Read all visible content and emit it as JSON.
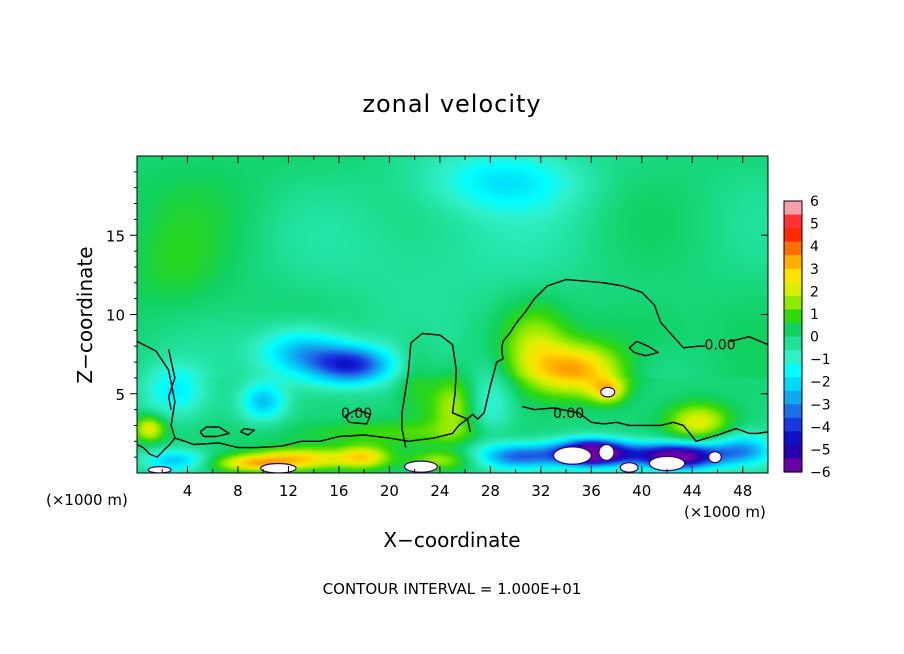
{
  "chart_data": {
    "type": "heatmap",
    "title": "zonal velocity",
    "xlabel": "X−coordinate",
    "ylabel": "Z−coordinate",
    "x_unit_left": "(×1000 m)",
    "x_unit_right": "(×1000 m)",
    "footer": "CONTOUR INTERVAL = 1.000E+01",
    "xlim": [
      0,
      50
    ],
    "ylim": [
      0,
      20
    ],
    "x_ticks": [
      "4",
      "8",
      "12",
      "16",
      "20",
      "24",
      "28",
      "32",
      "36",
      "40",
      "44",
      "48"
    ],
    "x_tick_values": [
      4,
      8,
      12,
      16,
      20,
      24,
      28,
      32,
      36,
      40,
      44,
      48
    ],
    "y_ticks": [
      "5",
      "10",
      "15"
    ],
    "y_tick_values": [
      5,
      10,
      15
    ],
    "contour_labels": [
      {
        "text": "0.00",
        "x": 17.4,
        "z": 3.8
      },
      {
        "text": "0.00",
        "x": 34.2,
        "z": 3.8
      },
      {
        "text": "0.00",
        "x": 46.2,
        "z": 8.1
      }
    ],
    "colorbar": {
      "labels": [
        "6",
        "5",
        "4",
        "3",
        "2",
        "1",
        "0",
        "−1",
        "−2",
        "−3",
        "−4",
        "−5",
        "−6"
      ],
      "colors": [
        "#f8a0a8",
        "#ff3333",
        "#ff2a00",
        "#ff7000",
        "#ffb000",
        "#ffe200",
        "#d8f000",
        "#90ea00",
        "#30d80a",
        "#10d060",
        "#20e09a",
        "#30f0c8",
        "#00ffff",
        "#00d8f8",
        "#10a8f0",
        "#1d70e8",
        "#1838e0",
        "#1010c8",
        "#2800b0",
        "#6a00a8"
      ]
    },
    "features": [
      {
        "x": 8,
        "z": 16.5,
        "v": 0.3,
        "sx": 14,
        "sz": 5
      },
      {
        "x": 29,
        "z": 18.5,
        "v": -1.8,
        "sx": 6,
        "sz": 2
      },
      {
        "x": 22,
        "z": 14.5,
        "v": -0.6,
        "sx": 12,
        "sz": 4
      },
      {
        "x": 3,
        "z": 12.5,
        "v": 0.5,
        "sx": 4,
        "sz": 3
      },
      {
        "x": 17,
        "z": 6.8,
        "v": -4.2,
        "sx": 3.2,
        "sz": 1.2
      },
      {
        "x": 13,
        "z": 7.6,
        "v": -2.8,
        "sx": 3.5,
        "sz": 1.6
      },
      {
        "x": 10,
        "z": 4.5,
        "v": -2.5,
        "sx": 1.8,
        "sz": 1.2
      },
      {
        "x": 3,
        "z": 5.2,
        "v": -1.8,
        "sx": 2.5,
        "sz": 1.6
      },
      {
        "x": 1,
        "z": 2.8,
        "v": 2.5,
        "sx": 1.2,
        "sz": 0.8
      },
      {
        "x": 25,
        "z": 4.2,
        "v": 1.8,
        "sx": 1.8,
        "sz": 2.0
      },
      {
        "x": 22,
        "z": 6.0,
        "v": 0.8,
        "sx": 1.5,
        "sz": 2.5
      },
      {
        "x": 35,
        "z": 6.5,
        "v": 3.3,
        "sx": 3.5,
        "sz": 1.6
      },
      {
        "x": 37.3,
        "z": 5.2,
        "v": 2.3,
        "sx": 1.4,
        "sz": 0.8
      },
      {
        "x": 31.5,
        "z": 8.0,
        "v": 1.6,
        "sx": 2.5,
        "sz": 2.5
      },
      {
        "x": 40,
        "z": 9.0,
        "v": 0.6,
        "sx": 4,
        "sz": 2
      },
      {
        "x": 44.5,
        "z": 3.2,
        "v": 2.4,
        "sx": 2.5,
        "sz": 1.2
      },
      {
        "x": 28,
        "z": 4.5,
        "v": -1.2,
        "sx": 1.8,
        "sz": 2.2
      },
      {
        "x": 20,
        "z": 2.5,
        "v": 1.0,
        "sx": 8,
        "sz": 0.8
      },
      {
        "x": 38,
        "z": 1.2,
        "v": -3.0,
        "sx": 8,
        "sz": 0.8
      },
      {
        "x": 13,
        "z": 0.9,
        "v": 3.0,
        "sx": 4,
        "sz": 0.7
      },
      {
        "x": 18,
        "z": 1.0,
        "v": 2.5,
        "sx": 2,
        "sz": 0.7
      },
      {
        "x": 36,
        "z": 1.3,
        "v": -5.5,
        "sx": 2.5,
        "sz": 0.8
      },
      {
        "x": 43,
        "z": 1.0,
        "v": -5.0,
        "sx": 3,
        "sz": 0.8
      },
      {
        "x": 9,
        "z": 0.6,
        "v": 2.5,
        "sx": 3.0,
        "sz": 0.5
      },
      {
        "x": 24,
        "z": 0.8,
        "v": 1.6,
        "sx": 2.5,
        "sz": 0.6
      },
      {
        "x": 30,
        "z": 1.0,
        "v": -2.5,
        "sx": 3,
        "sz": 0.8
      },
      {
        "x": 3,
        "z": 0.8,
        "v": -2.5,
        "sx": 2.5,
        "sz": 0.7
      },
      {
        "x": 48,
        "z": 1.5,
        "v": -2.5,
        "sx": 2.5,
        "sz": 1.0
      }
    ],
    "white_spots": [
      {
        "x": 11.2,
        "z": 0.3,
        "rx": 1.4,
        "rz": 0.3
      },
      {
        "x": 1.8,
        "z": 0.2,
        "rx": 0.9,
        "rz": 0.2
      },
      {
        "x": 22.5,
        "z": 0.4,
        "rx": 1.3,
        "rz": 0.35
      },
      {
        "x": 34.5,
        "z": 1.1,
        "rx": 1.5,
        "rz": 0.55
      },
      {
        "x": 37.2,
        "z": 1.3,
        "rx": 0.6,
        "rz": 0.5
      },
      {
        "x": 42.0,
        "z": 0.6,
        "rx": 1.4,
        "rz": 0.45
      },
      {
        "x": 45.8,
        "z": 1.0,
        "rx": 0.5,
        "rz": 0.35
      },
      {
        "x": 39.0,
        "z": 0.35,
        "rx": 0.7,
        "rz": 0.3
      },
      {
        "x": 37.3,
        "z": 5.1,
        "rx": 0.55,
        "rz": 0.3
      }
    ],
    "contours": [
      [
        [
          0,
          8.3
        ],
        [
          1.5,
          7.7
        ],
        [
          2.5,
          6.5
        ],
        [
          3,
          4.5
        ],
        [
          2.7,
          3.0
        ],
        [
          3.0,
          2.2
        ],
        [
          3.8,
          2.0
        ],
        [
          4.5,
          1.8
        ],
        [
          6.5,
          1.9
        ],
        [
          8,
          1.6
        ],
        [
          9.5,
          1.6
        ],
        [
          11.5,
          1.7
        ],
        [
          13,
          2.0
        ],
        [
          14.5,
          2.0
        ],
        [
          16,
          2.3
        ],
        [
          18,
          2.4
        ],
        [
          20,
          2.2
        ],
        [
          21.5,
          2.0
        ],
        [
          23.5,
          2.2
        ],
        [
          25,
          2.5
        ],
        [
          25.5,
          3.0
        ],
        [
          26,
          3.3
        ],
        [
          26.6,
          3.7
        ],
        [
          27,
          3.4
        ],
        [
          27.5,
          3.8
        ],
        [
          28,
          5.5
        ],
        [
          28.5,
          7.0
        ],
        [
          29,
          7.2
        ],
        [
          28.9,
          7.8
        ],
        [
          29,
          8.3
        ],
        [
          29.6,
          8.9
        ],
        [
          30,
          9.4
        ],
        [
          30.8,
          10.2
        ],
        [
          31.5,
          11.0
        ],
        [
          32.5,
          11.8
        ],
        [
          34,
          12.2
        ],
        [
          35.6,
          12.1
        ],
        [
          37,
          12.0
        ],
        [
          38.5,
          11.8
        ],
        [
          40,
          11.4
        ],
        [
          41,
          10.6
        ],
        [
          41.5,
          9.5
        ],
        [
          42.5,
          8.6
        ],
        [
          43.3,
          7.9
        ],
        [
          44.5,
          8.0
        ],
        [
          45,
          8.0
        ]
      ],
      [
        [
          47,
          8.3
        ],
        [
          48.5,
          8.6
        ],
        [
          50,
          8.1
        ]
      ],
      [
        [
          2.5,
          7.8
        ],
        [
          3,
          6.0
        ],
        [
          2.5,
          4.8
        ],
        [
          2.7,
          4.0
        ]
      ],
      [
        [
          3,
          2.2
        ],
        [
          2.6,
          1.8
        ],
        [
          2.2,
          1.5
        ],
        [
          1.6,
          1.0
        ],
        [
          1,
          1.2
        ],
        [
          0.5,
          1.6
        ],
        [
          0,
          1.8
        ]
      ],
      [
        [
          21.3,
          1.6
        ],
        [
          21.0,
          2.8
        ],
        [
          21.0,
          3.8
        ],
        [
          21.5,
          6.3
        ],
        [
          21.7,
          8.2
        ],
        [
          22.6,
          8.8
        ],
        [
          24,
          8.7
        ],
        [
          25,
          8.1
        ],
        [
          25.3,
          6.5
        ],
        [
          25.2,
          5.0
        ],
        [
          25.0,
          3.8
        ],
        [
          26.2,
          3.4
        ],
        [
          26.4,
          2.6
        ]
      ],
      [
        [
          30.5,
          4.2
        ],
        [
          31.5,
          4.0
        ],
        [
          33,
          4.1
        ],
        [
          35,
          3.8
        ],
        [
          36,
          3.2
        ],
        [
          37,
          3.1
        ],
        [
          38,
          3.2
        ],
        [
          39,
          3.0
        ],
        [
          40.5,
          3.0
        ],
        [
          41.5,
          3.0
        ],
        [
          42.5,
          3.2
        ],
        [
          43.3,
          3.0
        ],
        [
          44.3,
          2.0
        ],
        [
          46,
          2.4
        ],
        [
          47.5,
          2.8
        ],
        [
          48.5,
          2.5
        ],
        [
          49.2,
          2.5
        ],
        [
          50,
          2.6
        ]
      ],
      [
        [
          39,
          7.9
        ],
        [
          39.6,
          8.3
        ],
        [
          40.5,
          8.0
        ],
        [
          41.3,
          7.6
        ],
        [
          40.3,
          7.4
        ],
        [
          39.4,
          7.6
        ],
        [
          39,
          7.9
        ]
      ],
      [
        [
          5,
          2.6
        ],
        [
          5.5,
          2.9
        ],
        [
          6.5,
          2.9
        ],
        [
          7.3,
          2.5
        ],
        [
          6.3,
          2.3
        ],
        [
          5.3,
          2.3
        ],
        [
          5,
          2.6
        ]
      ],
      [
        [
          8.2,
          2.6
        ],
        [
          8.5,
          2.8
        ],
        [
          9.3,
          2.7
        ],
        [
          8.8,
          2.4
        ],
        [
          8.2,
          2.6
        ]
      ],
      [
        [
          16.5,
          3.6
        ],
        [
          17.4,
          4.0
        ],
        [
          18.5,
          3.7
        ],
        [
          18.2,
          3.1
        ],
        [
          16.8,
          3.2
        ],
        [
          16.5,
          3.6
        ]
      ]
    ]
  }
}
